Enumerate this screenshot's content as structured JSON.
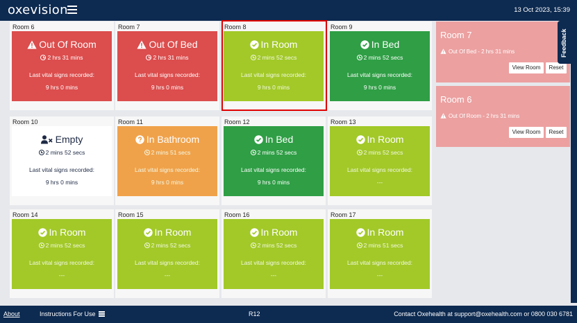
{
  "header": {
    "logo": "oxevision",
    "datetime": "13 Oct 2023, 15:39"
  },
  "rooms": [
    {
      "name": "Room 6",
      "status": "Out Of Room",
      "icon": "warning-icon",
      "duration": "2 hrs 31 mins",
      "vital_label": "Last vital signs recorded:",
      "vital_value": "9 hrs 0 mins",
      "color": "#dc4d4d"
    },
    {
      "name": "Room 7",
      "status": "Out Of Bed",
      "icon": "warning-icon",
      "duration": "2 hrs 31 mins",
      "vital_label": "Last vital signs recorded:",
      "vital_value": "9 hrs 0 mins",
      "color": "#dc4d4d"
    },
    {
      "name": "Room 8",
      "status": "In Room",
      "icon": "check-icon",
      "duration": "2 mins 52 secs",
      "vital_label": "Last vital signs recorded:",
      "vital_value": "9 hrs 0 mins",
      "color": "#a2c928"
    },
    {
      "name": "Room 9",
      "status": "In Bed",
      "icon": "check-icon",
      "duration": "2 mins 52 secs",
      "vital_label": "Last vital signs recorded:",
      "vital_value": "9 hrs 0 mins",
      "color": "#2f9e45"
    },
    {
      "name": "Room 10",
      "status": "Empty",
      "icon": "person-x-icon",
      "duration": "2 mins 52 secs",
      "vital_label": "Last vital signs recorded:",
      "vital_value": "9 hrs 0 mins",
      "color": "#ffffff"
    },
    {
      "name": "Room 11",
      "status": "In Bathroom",
      "icon": "question-icon",
      "duration": "2 mins 51 secs",
      "vital_label": "Last vital signs recorded:",
      "vital_value": "9 hrs 0 mins",
      "color": "#f0a24a"
    },
    {
      "name": "Room 12",
      "status": "In Bed",
      "icon": "check-icon",
      "duration": "2 mins 52 secs",
      "vital_label": "Last vital signs recorded:",
      "vital_value": "9 hrs 0 mins",
      "color": "#2f9e45"
    },
    {
      "name": "Room 13",
      "status": "In Room",
      "icon": "check-icon",
      "duration": "2 mins 52 secs",
      "vital_label": "Last vital signs recorded:",
      "vital_value": "---",
      "color": "#a2c928"
    },
    {
      "name": "Room 14",
      "status": "In Room",
      "icon": "check-icon",
      "duration": "2 mins 52 secs",
      "vital_label": "Last vital signs recorded:",
      "vital_value": "---",
      "color": "#a2c928"
    },
    {
      "name": "Room 15",
      "status": "In Room",
      "icon": "check-icon",
      "duration": "2 mins 52 secs",
      "vital_label": "Last vital signs recorded:",
      "vital_value": "---",
      "color": "#a2c928"
    },
    {
      "name": "Room 16",
      "status": "In Room",
      "icon": "check-icon",
      "duration": "2 mins 52 secs",
      "vital_label": "Last vital signs recorded:",
      "vital_value": "---",
      "color": "#a2c928"
    },
    {
      "name": "Room 17",
      "status": "In Room",
      "icon": "check-icon",
      "duration": "2 mins 51 secs",
      "vital_label": "Last vital signs recorded:",
      "vital_value": "---",
      "color": "#a2c928"
    }
  ],
  "alerts": [
    {
      "title": "Room 7",
      "detail": "Out Of Bed - 2 hrs 31 mins",
      "view_label": "View Room",
      "reset_label": "Reset"
    },
    {
      "title": "Room 6",
      "detail": "Out Of Room - 2 hrs 31 mins",
      "view_label": "View Room",
      "reset_label": "Reset"
    }
  ],
  "feedback_label": "Feedback",
  "footer": {
    "about": "About",
    "instructions": "Instructions For Use",
    "code": "R12",
    "contact": "Contact Oxehealth at support@oxehealth.com or 0800 030 6781"
  }
}
